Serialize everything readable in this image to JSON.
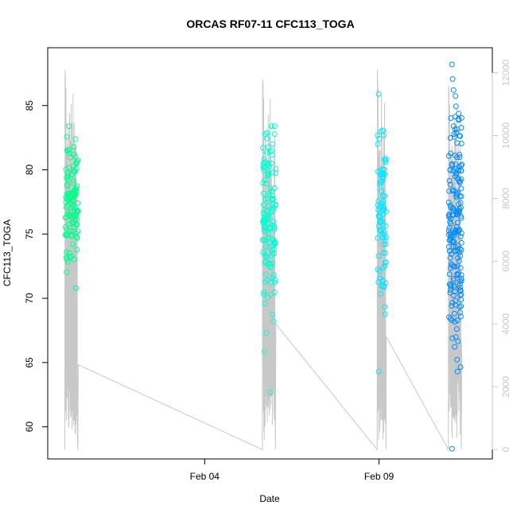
{
  "chart_data": {
    "type": "scatter",
    "title": "ORCAS RF07-11 CFC113_TOGA",
    "xlabel": "Date",
    "ylabel": "CFC113_TOGA",
    "x_ticks": [
      "Feb 04",
      "Feb 09"
    ],
    "xlim": [
      "2016-01-30T12:00",
      "2016-02-12T06:00"
    ],
    "ylim": [
      57.5,
      89.5
    ],
    "y_ticks": [
      60,
      65,
      70,
      75,
      80,
      85
    ],
    "y2lim": [
      -300,
      12800
    ],
    "y2_ticks": [
      0,
      2000,
      4000,
      6000,
      8000,
      10000,
      12000
    ],
    "y2_color": "#c8c8c8",
    "grid": false,
    "series": [
      {
        "color": "#00ff8c",
        "x_range": [
          "2016-01-31T00:00",
          "2016-01-31T09:00"
        ],
        "y_min": 70.8,
        "y_max": 83.4,
        "y_center": 77.5,
        "count": 130
      },
      {
        "color": "#00ffd2",
        "x_range": [
          "2016-02-05T16:00",
          "2016-02-06T01:00"
        ],
        "y_min": 62.7,
        "y_max": 83.4,
        "y_center": 76.0,
        "count": 140
      },
      {
        "color": "#00e8ff",
        "x_range": [
          "2016-02-08T23:00",
          "2016-02-09T05:00"
        ],
        "y_min": 64.3,
        "y_max": 85.9,
        "y_center": 76.5,
        "count": 90
      },
      {
        "color": "#008cff",
        "x_range": [
          "2016-02-11T00:00",
          "2016-02-11T09:00"
        ],
        "y_min": 58.3,
        "y_max": 88.2,
        "y_center": 75.0,
        "count": 190
      }
    ],
    "altitude_line": {
      "color": "#c8c8c8",
      "flights": [
        {
          "x_start": "2016-01-30T23:45",
          "x_end": "2016-01-31T09:00",
          "takeoff_alt": 12100,
          "end_alt": 2700
        },
        {
          "x_start": "2016-02-05T15:45",
          "x_end": "2016-02-06T01:00",
          "takeoff_alt": 11800,
          "end_alt": 4000
        },
        {
          "x_start": "2016-02-08T22:45",
          "x_end": "2016-02-09T05:00",
          "takeoff_alt": 12100,
          "end_alt": 3600
        },
        {
          "x_start": "2016-02-10T23:45",
          "x_end": "2016-02-11T09:00",
          "takeoff_alt": 11600,
          "end_alt": 3400
        }
      ]
    }
  }
}
